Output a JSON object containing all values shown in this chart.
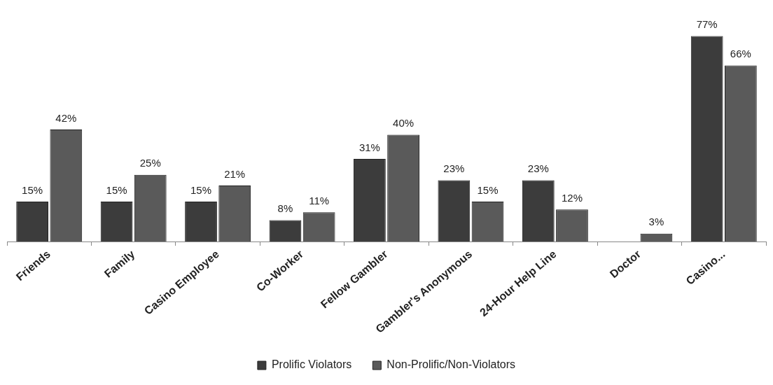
{
  "chart_data": {
    "type": "bar",
    "categories": [
      "Friends",
      "Family",
      "Casino Employee",
      "Co-Worker",
      "Fellow Gambler",
      "Gambler's Anonymous",
      "24-Hour Help Line",
      "Doctor",
      "Casino..."
    ],
    "series": [
      {
        "name": "Prolific Violators",
        "color": "#3c3c3c",
        "values": [
          15,
          15,
          15,
          8,
          31,
          23,
          23,
          null,
          77
        ],
        "value_labels": [
          "15%",
          "15%",
          "15%",
          "8%",
          "31%",
          "23%",
          "23%",
          null,
          "77%"
        ]
      },
      {
        "name": "Non-Prolific/Non-Violators",
        "color": "#5a5a5a",
        "values": [
          42,
          25,
          21,
          11,
          40,
          15,
          12,
          3,
          66
        ],
        "value_labels": [
          "42%",
          "25%",
          "21%",
          "11%",
          "40%",
          "15%",
          "12%",
          "3%",
          "66%"
        ]
      }
    ],
    "legend": "bottom"
  }
}
